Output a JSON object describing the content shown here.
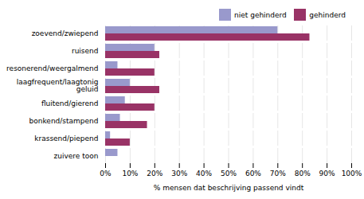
{
  "chart_data": {
    "type": "bar",
    "orientation": "horizontal",
    "categories": [
      "zoevend/zwiepend",
      "ruisend",
      "resonerend/weergalmend",
      "laagfrequent/laagtonig\ngeluid",
      "fluitend/gierend",
      "bonkend/stampend",
      "krassend/piepend",
      "zuivere toon"
    ],
    "series": [
      {
        "name": "niet gehinderd",
        "color": "#9999cc",
        "values": [
          70,
          20,
          5,
          10,
          8,
          6,
          2,
          5
        ]
      },
      {
        "name": "gehinderd",
        "color": "#993366",
        "values": [
          83,
          22,
          20,
          22,
          20,
          17,
          10,
          0
        ]
      }
    ],
    "xlabel": "% mensen dat beschrijving passend vindt",
    "xlim": [
      0,
      100
    ],
    "xticks": [
      {
        "value": 0,
        "label": "0%"
      },
      {
        "value": 10,
        "label": "10%"
      },
      {
        "value": 20,
        "label": "20%"
      },
      {
        "value": 30,
        "label": "30%"
      },
      {
        "value": 40,
        "label": "40%"
      },
      {
        "value": 50,
        "label": "50%"
      },
      {
        "value": 60,
        "label": "60%"
      },
      {
        "value": 70,
        "label": "70%"
      },
      {
        "value": 80,
        "label": "80%"
      },
      {
        "value": 90,
        "label": "90%"
      },
      {
        "value": 100,
        "label": "100%"
      }
    ],
    "grid": true,
    "legend": "right"
  }
}
